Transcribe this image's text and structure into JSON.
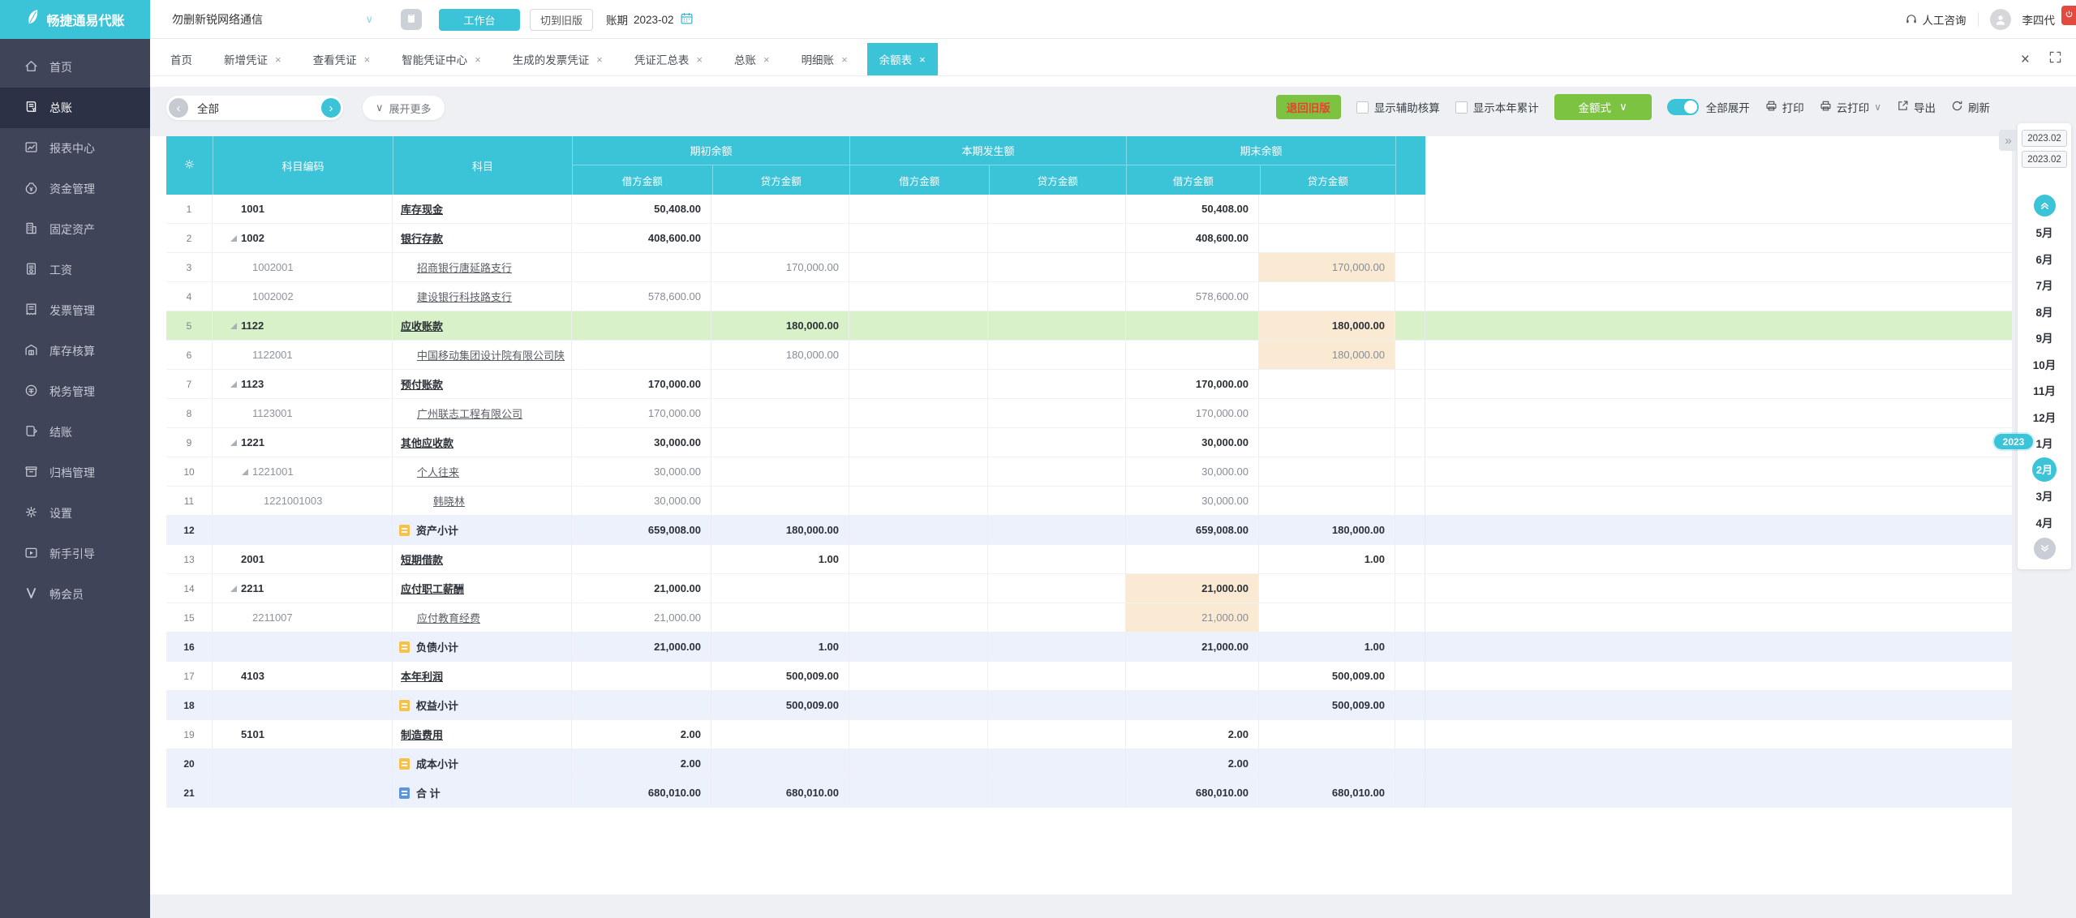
{
  "topbar": {
    "logo": "畅捷通易代账",
    "company": "勿删新锐网络通信",
    "workbench": "工作台",
    "switch_old": "切到旧版",
    "period_label": "账期",
    "period_value": "2023-02",
    "support": "人工咨询",
    "user": "李四代"
  },
  "tabs": [
    {
      "key": "home",
      "label": "首页",
      "closable": false,
      "active": false
    },
    {
      "key": "new-voucher",
      "label": "新增凭证",
      "closable": true,
      "active": false
    },
    {
      "key": "view-voucher",
      "label": "查看凭证",
      "closable": true,
      "active": false
    },
    {
      "key": "smart-voucher-center",
      "label": "智能凭证中心",
      "closable": true,
      "active": false
    },
    {
      "key": "generated-invoice-voucher",
      "label": "生成的发票凭证",
      "closable": true,
      "active": false
    },
    {
      "key": "voucher-summary",
      "label": "凭证汇总表",
      "closable": true,
      "active": false
    },
    {
      "key": "general-ledger",
      "label": "总账",
      "closable": true,
      "active": false
    },
    {
      "key": "detail-ledger",
      "label": "明细账",
      "closable": true,
      "active": false
    },
    {
      "key": "balance-sheet",
      "label": "余额表",
      "closable": true,
      "active": true
    }
  ],
  "toolbar": {
    "filter_all": "全部",
    "expand_more": "展开更多",
    "back_old": "退回旧版",
    "show_aux": "显示辅助核算",
    "show_ytd": "显示本年累计",
    "amount_style": "金额式",
    "expand_all": "全部展开",
    "print": "打印",
    "cloud_print": "云打印",
    "export": "导出",
    "refresh": "刷新"
  },
  "sidebar": {
    "items": [
      {
        "key": "home",
        "icon": "home-icon",
        "label": "首页",
        "active": false
      },
      {
        "key": "general-ledger",
        "icon": "ledger-icon",
        "label": "总账",
        "active": true
      },
      {
        "key": "report-center",
        "icon": "report-icon",
        "label": "报表中心",
        "active": false
      },
      {
        "key": "funds",
        "icon": "funds-icon",
        "label": "资金管理",
        "active": false
      },
      {
        "key": "fixed-assets",
        "icon": "building-icon",
        "label": "固定资产",
        "active": false
      },
      {
        "key": "salary",
        "icon": "salary-icon",
        "label": "工资",
        "active": false
      },
      {
        "key": "invoice",
        "icon": "invoice-icon",
        "label": "发票管理",
        "active": false
      },
      {
        "key": "inventory",
        "icon": "warehouse-icon",
        "label": "库存核算",
        "active": false
      },
      {
        "key": "tax",
        "icon": "tax-icon",
        "label": "税务管理",
        "active": false
      },
      {
        "key": "closing",
        "icon": "closing-icon",
        "label": "结账",
        "active": false
      },
      {
        "key": "archive",
        "icon": "archive-icon",
        "label": "归档管理",
        "active": false
      },
      {
        "key": "settings",
        "icon": "gear-icon",
        "label": "设置",
        "active": false
      },
      {
        "key": "guide",
        "icon": "guide-icon",
        "label": "新手引导",
        "active": false
      },
      {
        "key": "member",
        "icon": "member-icon",
        "label": "畅会员",
        "active": false
      }
    ]
  },
  "table": {
    "headers": {
      "code": "科目编码",
      "subject": "科目",
      "beginning": "期初余额",
      "current": "本期发生额",
      "ending": "期末余额",
      "debit": "借方金额",
      "credit": "贷方金额"
    },
    "rows": [
      {
        "n": "1",
        "code": "1001",
        "lvl": 0,
        "arrow": false,
        "name": "库存现金",
        "link": true,
        "bold": true,
        "bg": "",
        "icon": null,
        "a": {
          "bd": "50,408.00",
          "ed": "50,408.00"
        },
        "hl": []
      },
      {
        "n": "2",
        "code": "1002",
        "lvl": 0,
        "arrow": true,
        "name": "银行存款",
        "link": true,
        "bold": true,
        "bg": "",
        "icon": null,
        "a": {
          "bd": "408,600.00",
          "ed": "408,600.00"
        },
        "hl": []
      },
      {
        "n": "3",
        "code": "1002001",
        "lvl": 1,
        "arrow": false,
        "name": "招商银行唐延路支行",
        "link": true,
        "bold": false,
        "bg": "",
        "icon": null,
        "a": {
          "bc": "170,000.00",
          "ec": "170,000.00"
        },
        "hl": [
          "ec"
        ]
      },
      {
        "n": "4",
        "code": "1002002",
        "lvl": 1,
        "arrow": false,
        "name": "建设银行科技路支行",
        "link": true,
        "bold": false,
        "bg": "",
        "icon": null,
        "a": {
          "bd": "578,600.00",
          "ed": "578,600.00"
        },
        "hl": []
      },
      {
        "n": "5",
        "code": "1122",
        "lvl": 0,
        "arrow": true,
        "name": "应收账款",
        "link": true,
        "bold": true,
        "bg": "green",
        "icon": null,
        "a": {
          "bc": "180,000.00",
          "ec": "180,000.00"
        },
        "hl": [
          "ec"
        ]
      },
      {
        "n": "6",
        "code": "1122001",
        "lvl": 1,
        "arrow": false,
        "name": "中国移动集团设计院有限公司陕",
        "link": true,
        "bold": false,
        "bg": "",
        "icon": null,
        "a": {
          "bc": "180,000.00",
          "ec": "180,000.00"
        },
        "hl": [
          "ec"
        ]
      },
      {
        "n": "7",
        "code": "1123",
        "lvl": 0,
        "arrow": true,
        "name": "预付账款",
        "link": true,
        "bold": true,
        "bg": "",
        "icon": null,
        "a": {
          "bd": "170,000.00",
          "ed": "170,000.00"
        },
        "hl": []
      },
      {
        "n": "8",
        "code": "1123001",
        "lvl": 1,
        "arrow": false,
        "name": "广州联志工程有限公司",
        "link": true,
        "bold": false,
        "bg": "",
        "icon": null,
        "a": {
          "bd": "170,000.00",
          "ed": "170,000.00"
        },
        "hl": []
      },
      {
        "n": "9",
        "code": "1221",
        "lvl": 0,
        "arrow": true,
        "name": "其他应收款",
        "link": true,
        "bold": true,
        "bg": "",
        "icon": null,
        "a": {
          "bd": "30,000.00",
          "ed": "30,000.00"
        },
        "hl": []
      },
      {
        "n": "10",
        "code": "1221001",
        "lvl": 1,
        "arrow": true,
        "name": "个人往来",
        "link": true,
        "bold": false,
        "bg": "",
        "icon": null,
        "a": {
          "bd": "30,000.00",
          "ed": "30,000.00"
        },
        "hl": []
      },
      {
        "n": "11",
        "code": "1221001003",
        "lvl": 2,
        "arrow": false,
        "name": "韩晓林",
        "link": true,
        "bold": false,
        "bg": "",
        "icon": null,
        "a": {
          "bd": "30,000.00",
          "ed": "30,000.00"
        },
        "hl": []
      },
      {
        "n": "12",
        "code": "",
        "lvl": 0,
        "arrow": false,
        "name": "资产小计",
        "link": false,
        "bold": true,
        "bg": "blue",
        "icon": "subtotal-yellow-icon",
        "a": {
          "bd": "659,008.00",
          "bc": "180,000.00",
          "ed": "659,008.00",
          "ec": "180,000.00"
        },
        "hl": []
      },
      {
        "n": "13",
        "code": "2001",
        "lvl": 0,
        "arrow": false,
        "name": "短期借款",
        "link": true,
        "bold": true,
        "bg": "",
        "icon": null,
        "a": {
          "bc": "1.00",
          "ec": "1.00"
        },
        "hl": []
      },
      {
        "n": "14",
        "code": "2211",
        "lvl": 0,
        "arrow": true,
        "name": "应付职工薪酬",
        "link": true,
        "bold": true,
        "bg": "",
        "icon": null,
        "a": {
          "bd": "21,000.00",
          "ed": "21,000.00"
        },
        "hl": [
          "ed"
        ]
      },
      {
        "n": "15",
        "code": "2211007",
        "lvl": 1,
        "arrow": false,
        "name": "应付教育经费",
        "link": true,
        "bold": false,
        "bg": "",
        "icon": null,
        "a": {
          "bd": "21,000.00",
          "ed": "21,000.00"
        },
        "hl": [
          "ed"
        ]
      },
      {
        "n": "16",
        "code": "",
        "lvl": 0,
        "arrow": false,
        "name": "负债小计",
        "link": false,
        "bold": true,
        "bg": "blue",
        "icon": "subtotal-yellow-icon",
        "a": {
          "bd": "21,000.00",
          "bc": "1.00",
          "ed": "21,000.00",
          "ec": "1.00"
        },
        "hl": []
      },
      {
        "n": "17",
        "code": "4103",
        "lvl": 0,
        "arrow": false,
        "name": "本年利润",
        "link": true,
        "bold": true,
        "bg": "",
        "icon": null,
        "a": {
          "bc": "500,009.00",
          "ec": "500,009.00"
        },
        "hl": []
      },
      {
        "n": "18",
        "code": "",
        "lvl": 0,
        "arrow": false,
        "name": "权益小计",
        "link": false,
        "bold": true,
        "bg": "blue",
        "icon": "subtotal-yellow-icon",
        "a": {
          "bc": "500,009.00",
          "ec": "500,009.00"
        },
        "hl": []
      },
      {
        "n": "19",
        "code": "5101",
        "lvl": 0,
        "arrow": false,
        "name": "制造费用",
        "link": true,
        "bold": true,
        "bg": "",
        "icon": null,
        "a": {
          "bd": "2.00",
          "ed": "2.00"
        },
        "hl": []
      },
      {
        "n": "20",
        "code": "",
        "lvl": 0,
        "arrow": false,
        "name": "成本小计",
        "link": false,
        "bold": true,
        "bg": "blue",
        "icon": "subtotal-yellow-icon",
        "a": {
          "bd": "2.00",
          "ed": "2.00"
        },
        "hl": []
      },
      {
        "n": "21",
        "code": "",
        "lvl": 0,
        "arrow": false,
        "name": "合 计",
        "link": false,
        "bold": true,
        "bg": "blue",
        "icon": "total-blue-icon",
        "a": {
          "bd": "680,010.00",
          "bc": "680,010.00",
          "ed": "680,010.00",
          "ec": "680,010.00"
        },
        "hl": []
      }
    ]
  },
  "datepanel": {
    "from": "2023.02",
    "to": "2023.02",
    "year_badge": "2023",
    "selected": "2月",
    "months": [
      "5月",
      "6月",
      "7月",
      "8月",
      "9月",
      "10月",
      "11月",
      "12月",
      "1月",
      "2月",
      "3月",
      "4月"
    ]
  }
}
